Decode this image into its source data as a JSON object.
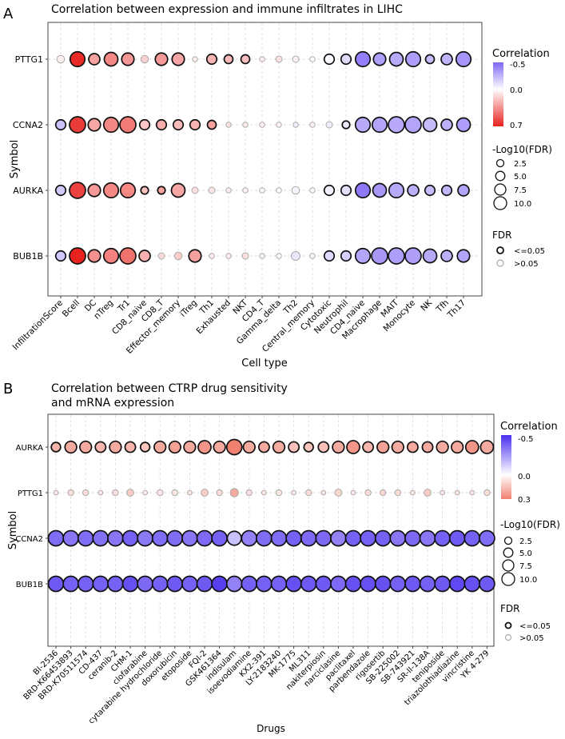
{
  "legend_labels": {
    "color_title": "Correlation",
    "size_title": "-Log10(FDR)",
    "fdr_title": "FDR",
    "fdr_sig": "<=0.05",
    "fdr_nonsig": ">0.05"
  },
  "chart_data": [
    {
      "type": "scatter",
      "panel_label": "A",
      "title": "Correlation between expression and immune infiltrates in LIHC",
      "xlabel": "Cell type",
      "ylabel": "Symbol",
      "color_range": [
        -0.5,
        0.7
      ],
      "color_ticks": [
        "-0.5",
        "0.0",
        "0.7"
      ],
      "size_ticks": [
        "2.5",
        "5.0",
        "7.5",
        "10.0"
      ],
      "categories": [
        "InfiltrationScore",
        "Bcell",
        "DC",
        "nTreg",
        "Tr1",
        "CD8_naive",
        "CD8_T",
        "Effector_memory",
        "iTreg",
        "Th1",
        "Exhausted",
        "NKT",
        "CD4_T",
        "Gamma_delta",
        "Th2",
        "Central_memory",
        "Cytotoxic",
        "Neutrophil",
        "CD4_naive",
        "Macrophage",
        "MAIT",
        "Monocyte",
        "NK",
        "Tfh",
        "Th17"
      ],
      "rows": [
        "PTTG1",
        "CCNA2",
        "AURKA",
        "BUB1B"
      ],
      "series": [
        {
          "name": "PTTG1",
          "correlation": [
            0.05,
            0.68,
            0.3,
            0.38,
            0.33,
            0.15,
            0.32,
            0.28,
            0.06,
            0.24,
            0.22,
            0.2,
            0.05,
            0.1,
            0.05,
            0.0,
            -0.02,
            -0.12,
            -0.42,
            -0.32,
            -0.28,
            -0.32,
            -0.22,
            -0.25,
            -0.35
          ],
          "log10fdr": [
            3,
            9,
            6,
            8,
            7,
            3,
            7,
            7,
            1,
            5,
            4,
            4,
            1,
            2,
            2,
            1,
            5,
            5,
            9,
            7,
            8,
            9,
            4,
            6,
            9
          ],
          "significant": [
            false,
            true,
            true,
            true,
            true,
            false,
            true,
            true,
            false,
            true,
            true,
            true,
            false,
            false,
            false,
            false,
            true,
            true,
            true,
            true,
            true,
            true,
            true,
            true,
            true
          ]
        },
        {
          "name": "CCNA2",
          "correlation": [
            -0.2,
            0.62,
            0.28,
            0.38,
            0.42,
            0.18,
            0.26,
            0.22,
            0.24,
            0.3,
            0.1,
            0.06,
            0.05,
            0.04,
            -0.06,
            0.04,
            -0.06,
            -0.08,
            -0.28,
            -0.3,
            -0.28,
            -0.3,
            -0.22,
            -0.26,
            -0.32
          ],
          "log10fdr": [
            5,
            10,
            7,
            9,
            10,
            5,
            5,
            5,
            5,
            4,
            1,
            1,
            1,
            1,
            1,
            1,
            2,
            3,
            9,
            9,
            10,
            10,
            8,
            6,
            8
          ],
          "significant": [
            true,
            true,
            true,
            true,
            true,
            true,
            true,
            true,
            true,
            true,
            false,
            false,
            false,
            false,
            false,
            false,
            false,
            true,
            true,
            true,
            true,
            true,
            true,
            true,
            true
          ]
        },
        {
          "name": "AURKA",
          "correlation": [
            -0.18,
            0.6,
            0.32,
            0.38,
            0.38,
            0.2,
            0.3,
            0.28,
            0.1,
            0.08,
            0.06,
            0.04,
            0.02,
            0.0,
            -0.04,
            0.02,
            -0.05,
            -0.1,
            -0.44,
            -0.34,
            -0.28,
            -0.26,
            -0.22,
            -0.24,
            -0.3
          ],
          "log10fdr": [
            5,
            10,
            7,
            9,
            9,
            3,
            3,
            8,
            2,
            2,
            1,
            1,
            1,
            1,
            3,
            1,
            5,
            5,
            9,
            8,
            9,
            6,
            5,
            5,
            6
          ],
          "significant": [
            true,
            true,
            true,
            true,
            true,
            true,
            true,
            true,
            false,
            false,
            false,
            false,
            false,
            false,
            false,
            false,
            true,
            true,
            true,
            true,
            true,
            true,
            true,
            true,
            true
          ]
        },
        {
          "name": "BUB1B",
          "correlation": [
            -0.18,
            0.7,
            0.35,
            0.4,
            0.45,
            0.25,
            0.12,
            0.16,
            0.3,
            0.06,
            0.06,
            0.1,
            0.04,
            0.02,
            -0.08,
            0.04,
            -0.12,
            -0.16,
            -0.3,
            -0.34,
            -0.32,
            -0.32,
            -0.28,
            -0.26,
            -0.3
          ],
          "log10fdr": [
            5,
            10,
            7,
            9,
            10,
            6,
            2,
            3,
            7,
            1,
            1,
            2,
            1,
            1,
            4,
            1,
            5,
            5,
            9,
            10,
            10,
            10,
            8,
            6,
            7
          ],
          "significant": [
            true,
            true,
            true,
            true,
            true,
            true,
            false,
            false,
            true,
            false,
            false,
            false,
            false,
            false,
            false,
            false,
            true,
            true,
            true,
            true,
            true,
            true,
            true,
            true,
            true
          ]
        }
      ]
    },
    {
      "type": "scatter",
      "panel_label": "B",
      "title": "Correlation between CTRP drug sensitivity\nand mRNA expression",
      "xlabel": "Drugs",
      "ylabel": "Symbol",
      "color_range": [
        -0.5,
        0.3
      ],
      "color_ticks": [
        "-0.5",
        "0.0",
        "0.3"
      ],
      "size_ticks": [
        "2.5",
        "5.0",
        "7.5",
        "10.0"
      ],
      "categories": [
        "BI-2536",
        "BRD-K66453893",
        "BRD-K70511574",
        "CD-437",
        "ceranib-2",
        "CHM-1",
        "clofarabine",
        "cytarabine hydrochloride",
        "doxorubicin",
        "etoposide",
        "FQI-2",
        "GSK461364",
        "indisulam",
        "isoevodiamine",
        "KX2-391",
        "LY-2183240",
        "MK-1775",
        "ML311",
        "nakiterpiosin",
        "narciclasine",
        "paclitaxel",
        "parbendazole",
        "rigosertib",
        "SB-225002",
        "SB-743921",
        "SR-II-138A",
        "teniposide",
        "triazolothiadiazine",
        "vincristine",
        "YK 4-279"
      ],
      "rows": [
        "AURKA",
        "PTTG1",
        "CCNA2",
        "BUB1B"
      ],
      "series": [
        {
          "name": "AURKA",
          "correlation": [
            0.18,
            0.2,
            0.2,
            0.17,
            0.2,
            0.17,
            0.14,
            0.2,
            0.22,
            0.2,
            0.25,
            0.2,
            0.3,
            0.2,
            0.2,
            0.2,
            0.15,
            0.14,
            0.15,
            0.2,
            0.25,
            0.17,
            0.22,
            0.2,
            0.2,
            0.2,
            0.2,
            0.2,
            0.25,
            0.2
          ],
          "log10fdr": [
            5,
            7,
            7,
            6,
            7,
            6,
            5,
            7,
            7,
            7,
            8,
            7,
            10,
            7,
            6,
            7,
            6,
            5,
            6,
            7,
            8,
            6,
            7,
            7,
            6,
            6,
            7,
            7,
            8,
            8
          ],
          "significant": [
            true,
            true,
            true,
            true,
            true,
            true,
            true,
            true,
            true,
            true,
            true,
            true,
            true,
            true,
            true,
            true,
            true,
            true,
            true,
            true,
            true,
            true,
            true,
            true,
            true,
            true,
            true,
            true,
            true,
            true
          ]
        },
        {
          "name": "PTTG1",
          "correlation": [
            0.06,
            0.08,
            0.08,
            0.06,
            0.08,
            0.12,
            0.05,
            0.06,
            0.06,
            0.06,
            0.12,
            0.08,
            0.2,
            0.08,
            0.06,
            0.06,
            0.06,
            0.08,
            0.06,
            0.1,
            0.06,
            0.08,
            0.1,
            0.08,
            0.06,
            0.12,
            0.06,
            0.06,
            0.06,
            0.08
          ],
          "log10fdr": [
            1,
            2,
            2,
            1,
            2,
            3,
            1,
            2,
            2,
            1,
            3,
            2,
            4,
            2,
            1,
            2,
            1,
            2,
            1,
            3,
            1,
            2,
            2,
            2,
            1,
            3,
            1,
            1,
            1,
            2
          ],
          "significant": [
            false,
            false,
            false,
            false,
            false,
            false,
            false,
            false,
            false,
            false,
            false,
            false,
            false,
            false,
            false,
            false,
            false,
            false,
            false,
            false,
            false,
            false,
            false,
            false,
            false,
            false,
            false,
            false,
            false,
            false
          ]
        },
        {
          "name": "CCNA2",
          "correlation": [
            -0.35,
            -0.33,
            -0.35,
            -0.34,
            -0.33,
            -0.38,
            -0.32,
            -0.35,
            -0.35,
            -0.33,
            -0.36,
            -0.38,
            -0.15,
            -0.3,
            -0.35,
            -0.35,
            -0.38,
            -0.36,
            -0.36,
            -0.3,
            -0.38,
            -0.38,
            -0.38,
            -0.33,
            -0.36,
            -0.33,
            -0.38,
            -0.4,
            -0.38,
            -0.35
          ],
          "log10fdr": [
            10,
            10,
            10,
            10,
            10,
            10,
            10,
            10,
            10,
            10,
            10,
            10,
            9,
            10,
            10,
            10,
            10,
            10,
            10,
            10,
            10,
            10,
            10,
            10,
            10,
            10,
            10,
            10,
            10,
            10
          ],
          "significant": [
            true,
            true,
            true,
            true,
            true,
            true,
            true,
            true,
            true,
            true,
            true,
            true,
            true,
            true,
            true,
            true,
            true,
            true,
            true,
            true,
            true,
            true,
            true,
            true,
            true,
            true,
            true,
            true,
            true,
            true
          ]
        },
        {
          "name": "BUB1B",
          "correlation": [
            -0.4,
            -0.38,
            -0.38,
            -0.38,
            -0.38,
            -0.42,
            -0.36,
            -0.38,
            -0.4,
            -0.38,
            -0.4,
            -0.46,
            -0.3,
            -0.38,
            -0.38,
            -0.38,
            -0.42,
            -0.4,
            -0.4,
            -0.36,
            -0.42,
            -0.42,
            -0.42,
            -0.38,
            -0.4,
            -0.38,
            -0.4,
            -0.44,
            -0.42,
            -0.4
          ],
          "log10fdr": [
            10,
            10,
            10,
            10,
            10,
            10,
            10,
            10,
            10,
            10,
            10,
            10,
            10,
            10,
            10,
            10,
            10,
            10,
            10,
            10,
            10,
            10,
            10,
            10,
            10,
            10,
            10,
            10,
            10,
            10
          ],
          "significant": [
            true,
            true,
            true,
            true,
            true,
            true,
            true,
            true,
            true,
            true,
            true,
            true,
            true,
            true,
            true,
            true,
            true,
            true,
            true,
            true,
            true,
            true,
            true,
            true,
            true,
            true,
            true,
            true,
            true,
            true
          ]
        }
      ]
    }
  ]
}
